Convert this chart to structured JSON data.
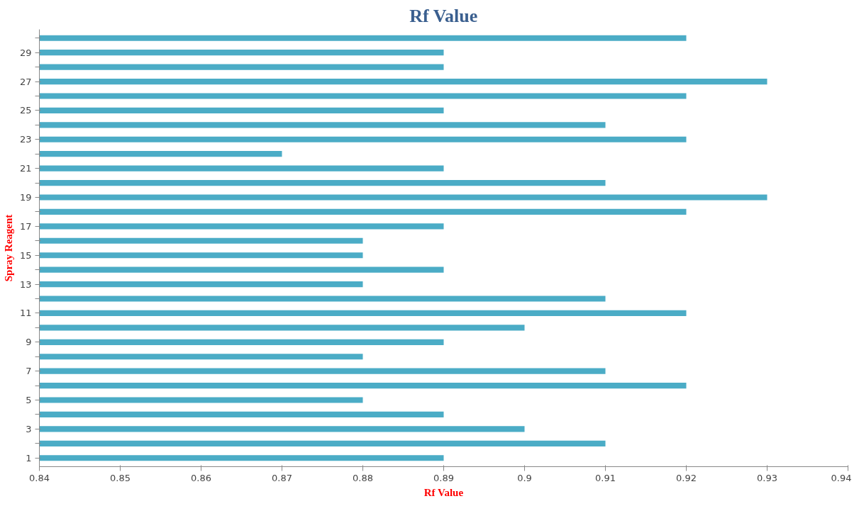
{
  "chart_data": {
    "type": "bar",
    "orientation": "horizontal",
    "title": "Rf Value",
    "xlabel": "Rf Value",
    "ylabel": "Spray Reagent",
    "categories": [
      null,
      "29",
      null,
      "27",
      null,
      "25",
      null,
      "23",
      null,
      "21",
      null,
      "19",
      null,
      "17",
      null,
      "15",
      null,
      "13",
      null,
      "11",
      null,
      "9",
      null,
      "7",
      null,
      "5",
      null,
      "3",
      null,
      "1"
    ],
    "values": [
      0.92,
      0.89,
      0.89,
      0.93,
      0.92,
      0.89,
      0.91,
      0.92,
      0.87,
      0.89,
      0.91,
      0.93,
      0.92,
      0.89,
      0.88,
      0.88,
      0.89,
      0.88,
      0.91,
      0.92,
      0.9,
      0.89,
      0.88,
      0.91,
      0.92,
      0.88,
      0.89,
      0.9,
      0.91,
      0.89
    ],
    "color": "#4bacc6",
    "xlim": [
      0.84,
      0.94
    ],
    "xticks": [
      0.84,
      0.85,
      0.86,
      0.87,
      0.88,
      0.89,
      0.9,
      0.91,
      0.92,
      0.93,
      0.94
    ],
    "grid": false
  }
}
